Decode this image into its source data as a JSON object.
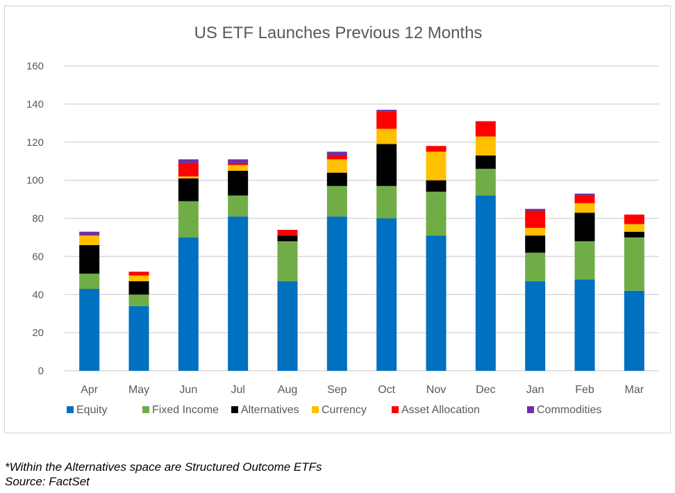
{
  "chart_data": {
    "type": "bar",
    "stacked": true,
    "title": "US ETF Launches Previous 12 Months",
    "xlabel": "",
    "ylabel": "",
    "ylim": [
      0,
      160
    ],
    "yticks": [
      0,
      20,
      40,
      60,
      80,
      100,
      120,
      140,
      160
    ],
    "grid": true,
    "legend_position": "bottom",
    "categories": [
      "Apr",
      "May",
      "Jun",
      "Jul",
      "Aug",
      "Sep",
      "Oct",
      "Nov",
      "Dec",
      "Jan",
      "Feb",
      "Mar"
    ],
    "series": [
      {
        "name": "Equity",
        "color": "#0070C0",
        "values": [
          43,
          34,
          70,
          81,
          47,
          81,
          80,
          71,
          92,
          47,
          48,
          42
        ]
      },
      {
        "name": "Fixed Income",
        "color": "#70AD47",
        "values": [
          8,
          6,
          19,
          11,
          21,
          16,
          17,
          23,
          14,
          15,
          20,
          28
        ]
      },
      {
        "name": "Alternatives",
        "color": "#000000",
        "values": [
          15,
          7,
          12,
          13,
          3,
          7,
          22,
          6,
          7,
          9,
          15,
          3
        ]
      },
      {
        "name": "Currency",
        "color": "#FFC000",
        "values": [
          5,
          3,
          1,
          3,
          0,
          7,
          8,
          15,
          10,
          4,
          5,
          4
        ]
      },
      {
        "name": "Asset Allocation",
        "color": "#FF0000",
        "values": [
          0,
          2,
          7,
          1,
          3,
          2,
          9,
          3,
          8,
          9,
          4,
          5
        ]
      },
      {
        "name": "Commodities",
        "color": "#7030A0",
        "values": [
          2,
          0,
          2,
          2,
          0,
          2,
          1,
          0,
          0,
          1,
          1,
          0
        ]
      }
    ]
  },
  "footnotes": {
    "note": "*Within the Alternatives space are Structured Outcome ETFs",
    "source": "Source: FactSet"
  }
}
